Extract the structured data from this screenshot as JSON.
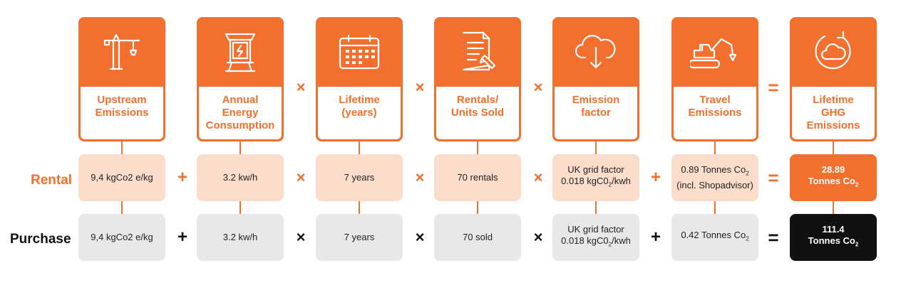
{
  "accent_color": "#f26f2d",
  "headers": [
    {
      "label": "Upstream\nEmissions",
      "icon": "crane-icon"
    },
    {
      "label": "Annual\nEnergy\nConsumption",
      "icon": "charging-station-icon"
    },
    {
      "label": "Lifetime\n(years)",
      "icon": "calendar-icon"
    },
    {
      "label": "Rentals/\nUnits Sold",
      "icon": "document-pen-icon"
    },
    {
      "label": "Emission\nfactor",
      "icon": "cloud-download-icon"
    },
    {
      "label": "Travel\nEmissions",
      "icon": "excavator-icon"
    },
    {
      "label": "Lifetime\nGHG\nEmissions",
      "icon": "cloud-cycle-icon"
    }
  ],
  "header_operators": [
    "×",
    "×",
    "×",
    "="
  ],
  "rental": {
    "label": "Rental",
    "cells": [
      "9,4 kgCo2 e/kg",
      "3.2 kw/h",
      "7 years",
      "70 rentals"
    ],
    "emission_factor": {
      "line1": "UK grid factor",
      "line2_prefix": "0.018 kgC0",
      "line2_sub": "2",
      "line2_suffix": "/kwh"
    },
    "travel": {
      "line1_prefix": "0.89 Tonnes Co",
      "line1_sub": "2",
      "line2": "(incl. Shopadvisor)"
    },
    "result": {
      "value": "28.89",
      "unit_prefix": "Tonnes Co",
      "unit_sub": "2"
    },
    "operators": [
      "+",
      "×",
      "×",
      "×",
      "+",
      "="
    ]
  },
  "purchase": {
    "label": "Purchase",
    "cells": [
      "9,4 kgCo2 e/kg",
      "3.2 kw/h",
      "7 years",
      "70 sold"
    ],
    "emission_factor": {
      "line1": "UK grid factor",
      "line2_prefix": "0.018 kgC0",
      "line2_sub": "2",
      "line2_suffix": "/kwh"
    },
    "travel": {
      "line1_prefix": "0.42 Tonnes Co",
      "line1_sub": "2"
    },
    "result": {
      "value": "111.4",
      "unit_prefix": "Tonnes Co",
      "unit_sub": "2"
    },
    "operators": [
      "+",
      "×",
      "×",
      "×",
      "+",
      "="
    ]
  }
}
